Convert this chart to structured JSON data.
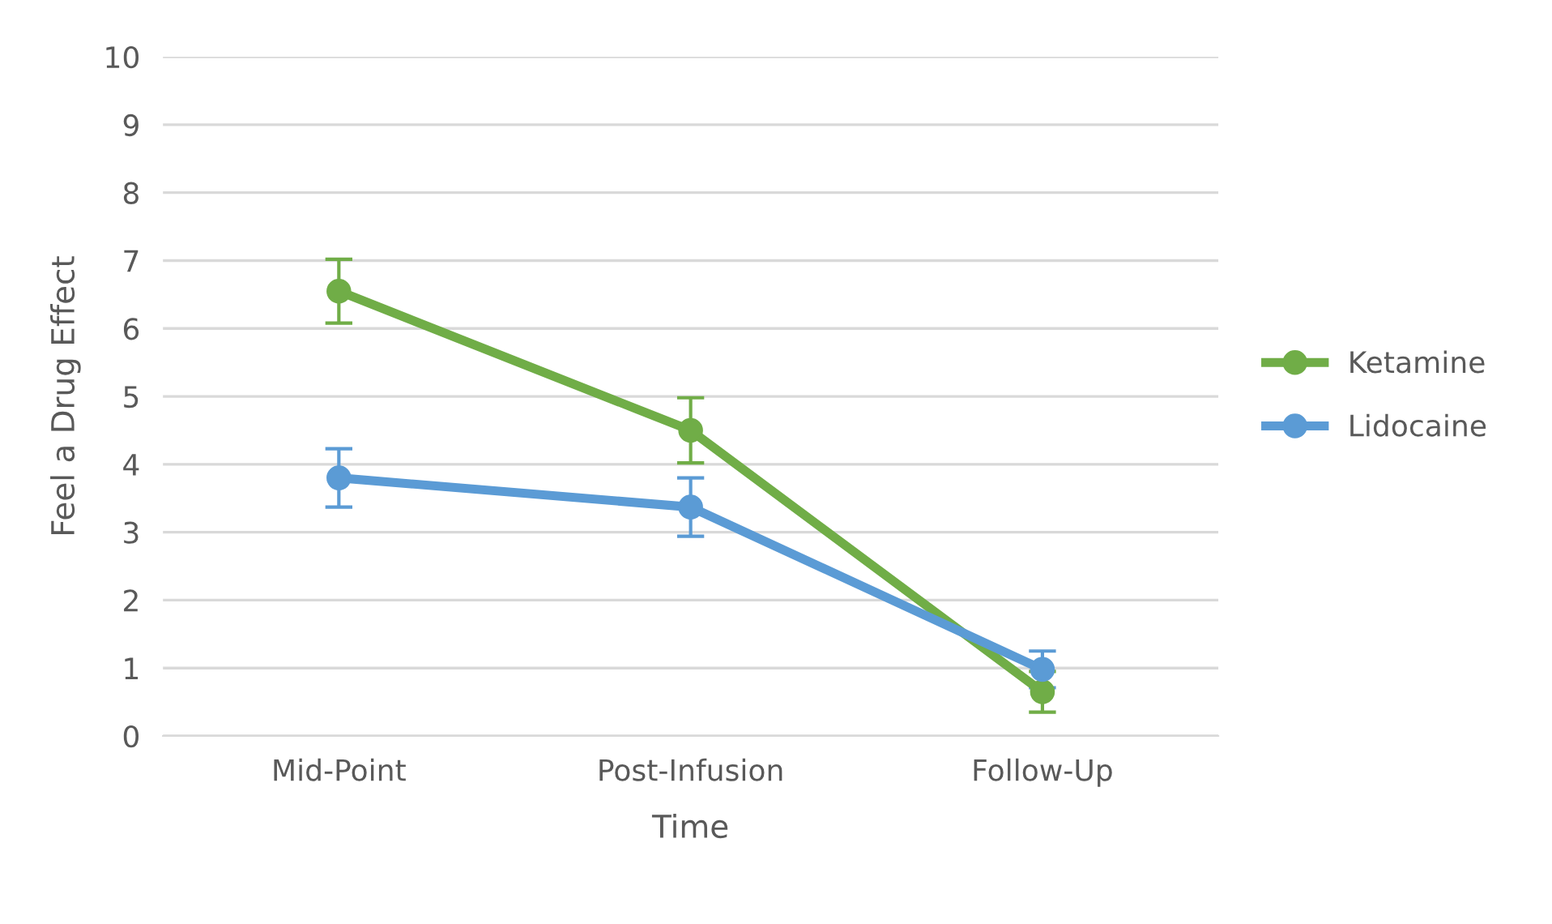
{
  "chart_data": {
    "type": "line",
    "xlabel": "Time",
    "ylabel": "Feel a Drug Effect",
    "categories": [
      "Mid-Point",
      "Post-Infusion",
      "Follow-Up"
    ],
    "series": [
      {
        "name": "Ketamine",
        "color": "#70ad47",
        "values": [
          6.55,
          4.5,
          0.65
        ],
        "errors": [
          0.47,
          0.48,
          0.3
        ]
      },
      {
        "name": "Lidocaine",
        "color": "#5b9bd5",
        "values": [
          3.8,
          3.37,
          0.98
        ],
        "errors": [
          0.43,
          0.43,
          0.27
        ]
      }
    ],
    "ylim": [
      0,
      10
    ],
    "yticks": [
      0,
      1,
      2,
      3,
      4,
      5,
      6,
      7,
      8,
      9,
      10
    ],
    "grid": "y",
    "legend": "right",
    "marker": "circle",
    "line_style": "solid"
  }
}
